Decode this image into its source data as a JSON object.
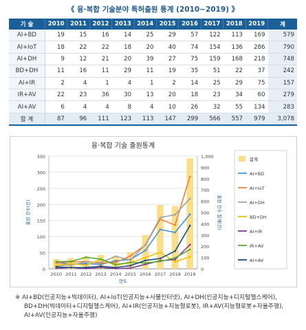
{
  "title": "《 융·복합 기술분야 특허출원 통계 (2010∼2019) 》",
  "table": {
    "headers": [
      "기 술",
      "2010",
      "2011",
      "2012",
      "2013",
      "2014",
      "2015",
      "2016",
      "2017",
      "2018",
      "2019",
      "계"
    ],
    "rows": [
      {
        "label": "AI+BD",
        "values": [
          "19",
          "15",
          "16",
          "14",
          "25",
          "29",
          "57",
          "122",
          "113",
          "169"
        ],
        "total": "579"
      },
      {
        "label": "AI+IoT",
        "values": [
          "18",
          "22",
          "22",
          "18",
          "20",
          "40",
          "74",
          "154",
          "136",
          "286"
        ],
        "total": "790"
      },
      {
        "label": "AI+DH",
        "values": [
          "9",
          "12",
          "21",
          "20",
          "39",
          "27",
          "75",
          "159",
          "168",
          "218"
        ],
        "total": "748"
      },
      {
        "label": "BD+DH",
        "values": [
          "11",
          "16",
          "11",
          "29",
          "11",
          "19",
          "35",
          "51",
          "22",
          "37"
        ],
        "total": "242"
      },
      {
        "label": "AI+IR",
        "values": [
          "2",
          "4",
          "1",
          "4",
          "1",
          "2",
          "14",
          "25",
          "29",
          "75"
        ],
        "total": "157"
      },
      {
        "label": "IR+AV",
        "values": [
          "22",
          "23",
          "36",
          "30",
          "13",
          "20",
          "18",
          "23",
          "34",
          "60"
        ],
        "total": "279"
      },
      {
        "label": "AI+AV",
        "values": [
          "6",
          "4",
          "4",
          "8",
          "4",
          "10",
          "26",
          "32",
          "55",
          "134"
        ],
        "total": "283"
      }
    ],
    "sum": {
      "label": "합 계",
      "values": [
        "87",
        "96",
        "111",
        "123",
        "113",
        "147",
        "299",
        "566",
        "557",
        "979"
      ],
      "total": "3,078"
    }
  },
  "chart_data": {
    "type": "bar+line",
    "title": "융·복합 기술 출원통계",
    "xlabel": "연도",
    "ylabel_left": "출원 건수(건)",
    "ylabel_right": "출원 건수 합계(건)",
    "x": [
      "2010",
      "2011",
      "2012",
      "2013",
      "2014",
      "2015",
      "2016",
      "2017",
      "2018",
      "2019"
    ],
    "ylim_left": [
      0,
      350
    ],
    "yticks_left": [
      "0",
      "50",
      "100",
      "150",
      "200",
      "250",
      "300",
      "350"
    ],
    "ylim_right": [
      0,
      1000
    ],
    "yticks_right": [
      "0",
      "100",
      "200",
      "300",
      "400",
      "500",
      "600",
      "700",
      "800",
      "900",
      "1,000"
    ],
    "bar_series": {
      "name": "합계",
      "values": [
        87,
        96,
        111,
        123,
        113,
        147,
        299,
        566,
        557,
        979
      ],
      "color": "#f9df8c",
      "axis": "right"
    },
    "line_series": [
      {
        "name": "AI+BD",
        "values": [
          19,
          15,
          16,
          14,
          25,
          29,
          57,
          122,
          113,
          169
        ],
        "color": "#4a90d9"
      },
      {
        "name": "AI+IoT",
        "values": [
          18,
          22,
          22,
          18,
          20,
          40,
          74,
          154,
          136,
          286
        ],
        "color": "#e8833a"
      },
      {
        "name": "AI+DH",
        "values": [
          9,
          12,
          21,
          20,
          39,
          27,
          75,
          159,
          168,
          218
        ],
        "color": "#a3a3a3"
      },
      {
        "name": "BD+DH",
        "values": [
          11,
          16,
          11,
          29,
          11,
          19,
          35,
          51,
          22,
          37
        ],
        "color": "#f2c200"
      },
      {
        "name": "AI+IR",
        "values": [
          2,
          4,
          1,
          4,
          1,
          2,
          14,
          25,
          29,
          75
        ],
        "color": "#7d3c98"
      },
      {
        "name": "IR+AV",
        "values": [
          22,
          23,
          36,
          30,
          13,
          20,
          18,
          23,
          34,
          60
        ],
        "color": "#5aa83a"
      },
      {
        "name": "AI+AV",
        "values": [
          6,
          4,
          4,
          8,
          4,
          10,
          26,
          32,
          55,
          134
        ],
        "color": "#1f4e79"
      }
    ],
    "grid": true,
    "legend_position": "right"
  },
  "footnote": [
    "※ AI+BD(인공지능+빅데이터), AI+IoT(인공지능+사물인터넷), AI+DH(인공지능+디지털헬스케어),",
    "BD+DH(빅데이터+디지털헬스케어), AI+IR(인공지능+지능형로봇), IR+AV(지능형로봇+자율주행),",
    "AI+AV(인공지능+자율주행)"
  ]
}
